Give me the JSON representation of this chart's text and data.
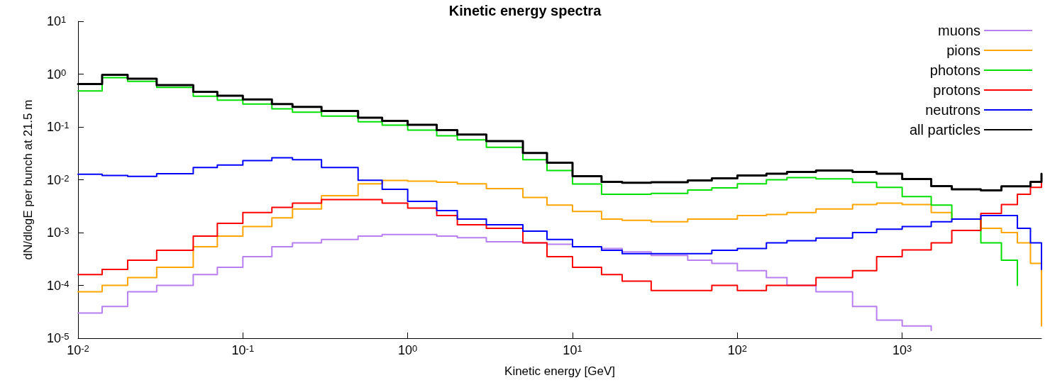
{
  "chart_data": {
    "type": "step",
    "title": "Kinetic energy spectra",
    "xlabel": "Kinetic energy [GeV]",
    "ylabel": "dN/dlogE per bunch at 21.5 m",
    "log": "xy",
    "grid": false,
    "legend": "top right",
    "marker": "none",
    "line_style": "solid",
    "xlim": [
      0.01,
      7000
    ],
    "ylim": [
      1e-05,
      10
    ],
    "xticks": [
      {
        "value": 0.01,
        "label": "10$^{-2}$"
      },
      {
        "value": 0.1,
        "label": "10$^{-1}$"
      },
      {
        "value": 1,
        "label": "10$^{0}$"
      },
      {
        "value": 10,
        "label": "10$^{1}$"
      },
      {
        "value": 100,
        "label": "10$^{2}$"
      },
      {
        "value": 1000,
        "label": "10$^{3}$"
      }
    ],
    "yticks": [
      {
        "value": 1e-05,
        "label": "10$^{-5}$"
      },
      {
        "value": 0.0001,
        "label": "10$^{-4}$"
      },
      {
        "value": 0.001,
        "label": "10$^{-3}$"
      },
      {
        "value": 0.01,
        "label": "10$^{-2}$"
      },
      {
        "value": 0.1,
        "label": "10$^{-1}$"
      },
      {
        "value": 1,
        "label": "10$^{0}$"
      },
      {
        "value": 10,
        "label": "10$^{1}$"
      }
    ],
    "x": [
      0.01,
      0.014,
      0.02,
      0.03,
      0.05,
      0.07,
      0.1,
      0.15,
      0.2,
      0.3,
      0.5,
      0.7,
      1,
      1.5,
      2,
      3,
      5,
      7,
      10,
      15,
      20,
      30,
      50,
      70,
      100,
      150,
      200,
      300,
      500,
      700,
      1000,
      1500,
      2000,
      3000,
      4000,
      5000,
      6000,
      7000
    ],
    "series": [
      {
        "name": "muons",
        "color": "#b87ff0",
        "x": [
          0.01,
          0.014,
          0.02,
          0.03,
          0.05,
          0.07,
          0.1,
          0.15,
          0.2,
          0.3,
          0.5,
          0.7,
          1,
          1.5,
          2,
          3,
          5,
          7,
          10,
          15,
          20,
          30,
          50,
          70,
          100,
          150,
          200,
          300,
          500,
          700,
          1000,
          1500
        ],
        "values": [
          3e-05,
          4e-05,
          7.6e-05,
          0.0001,
          0.00016,
          0.00022,
          0.00035,
          0.00054,
          0.00064,
          0.00074,
          0.00086,
          0.00092,
          0.00092,
          0.00086,
          0.0008,
          0.00067,
          0.00064,
          0.0006,
          0.00054,
          0.0005,
          0.00043,
          0.00037,
          0.0003,
          0.00026,
          0.00019,
          0.00014,
          0.0001,
          7.6e-05,
          4e-05,
          2.2e-05,
          1.7e-05,
          1.4e-05
        ]
      },
      {
        "name": "pions",
        "color": "#ffa500",
        "values": [
          7.6e-05,
          0.0001,
          0.00014,
          0.00022,
          0.00054,
          0.00086,
          0.0013,
          0.0019,
          0.0028,
          0.005,
          0.0084,
          0.0097,
          0.0094,
          0.009,
          0.0084,
          0.0068,
          0.0046,
          0.0033,
          0.0025,
          0.0018,
          0.0017,
          0.0016,
          0.0018,
          0.0018,
          0.0021,
          0.0022,
          0.0024,
          0.0028,
          0.0034,
          0.0036,
          0.0034,
          0.0024,
          0.0018,
          0.0012,
          0.001,
          0.00064,
          0.00026,
          1.7e-05
        ]
      },
      {
        "name": "photons",
        "color": "#00e000",
        "x": [
          0.01,
          0.014,
          0.02,
          0.03,
          0.05,
          0.07,
          0.1,
          0.15,
          0.2,
          0.3,
          0.5,
          0.7,
          1,
          1.5,
          2,
          3,
          5,
          7,
          10,
          15,
          20,
          30,
          50,
          70,
          100,
          150,
          200,
          300,
          500,
          700,
          1000,
          1500,
          2000,
          3000,
          4000,
          5000
        ],
        "values": [
          0.48,
          0.86,
          0.73,
          0.56,
          0.38,
          0.32,
          0.27,
          0.22,
          0.19,
          0.16,
          0.125,
          0.108,
          0.087,
          0.068,
          0.057,
          0.041,
          0.024,
          0.015,
          0.0083,
          0.0053,
          0.0053,
          0.0055,
          0.0064,
          0.007,
          0.0084,
          0.01,
          0.011,
          0.0104,
          0.0089,
          0.0072,
          0.0048,
          0.0033,
          0.0018,
          0.00064,
          0.0003,
          0.0001
        ]
      },
      {
        "name": "protons",
        "color": "#ff0000",
        "values": [
          0.00016,
          0.0002,
          0.0003,
          0.00046,
          0.00086,
          0.0015,
          0.0024,
          0.003,
          0.0036,
          0.0042,
          0.0042,
          0.0036,
          0.0029,
          0.0021,
          0.0014,
          0.0012,
          0.00064,
          0.00035,
          0.00022,
          0.00016,
          0.00012,
          8e-05,
          8e-05,
          0.0001,
          8e-05,
          0.0001,
          0.0001,
          0.00014,
          0.00019,
          0.00035,
          0.00047,
          0.00064,
          0.0011,
          0.0023,
          0.0034,
          0.0053,
          0.0072,
          0.0098
        ]
      },
      {
        "name": "neutrons",
        "color": "#0000ff",
        "values": [
          0.0127,
          0.012,
          0.0116,
          0.013,
          0.017,
          0.019,
          0.023,
          0.026,
          0.024,
          0.017,
          0.0098,
          0.0066,
          0.0039,
          0.0026,
          0.0018,
          0.0014,
          0.00106,
          0.00074,
          0.00054,
          0.00046,
          0.0004,
          0.0004,
          0.0004,
          0.00046,
          0.0005,
          0.00064,
          0.0007,
          0.00079,
          0.001,
          0.00116,
          0.0013,
          0.0016,
          0.0018,
          0.0021,
          0.0021,
          0.0012,
          0.00064,
          0.0002
        ]
      },
      {
        "name": "all particles",
        "color": "#000000",
        "values": [
          0.65,
          0.97,
          0.82,
          0.62,
          0.46,
          0.39,
          0.33,
          0.27,
          0.24,
          0.2,
          0.15,
          0.13,
          0.11,
          0.087,
          0.072,
          0.054,
          0.032,
          0.021,
          0.0117,
          0.0091,
          0.0088,
          0.009,
          0.0097,
          0.0106,
          0.012,
          0.013,
          0.014,
          0.015,
          0.014,
          0.013,
          0.0103,
          0.0076,
          0.0066,
          0.0063,
          0.0075,
          0.0075,
          0.0091,
          0.013
        ]
      }
    ]
  }
}
